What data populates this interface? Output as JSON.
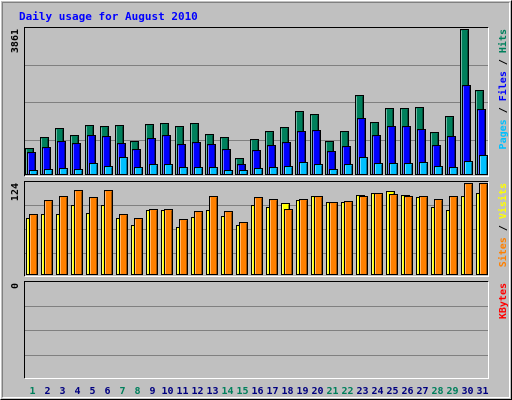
{
  "chart_data": {
    "type": "bar",
    "title": "Daily usage for August 2010",
    "categories": [
      "1",
      "2",
      "3",
      "4",
      "5",
      "6",
      "7",
      "8",
      "9",
      "10",
      "11",
      "12",
      "13",
      "14",
      "15",
      "16",
      "17",
      "18",
      "19",
      "20",
      "21",
      "22",
      "23",
      "24",
      "25",
      "26",
      "27",
      "28",
      "29",
      "30",
      "31"
    ],
    "weekend_days": [
      "1",
      "7",
      "8",
      "14",
      "15",
      "21",
      "22",
      "28",
      "29"
    ],
    "colors": {
      "hits": "#00805c",
      "files": "#0000ff",
      "pages": "#00c0ff",
      "visits": "#ffff00",
      "sites": "#ff8000",
      "kbytes": "#ff0000",
      "title": "#0000ff",
      "weekday": "#000080",
      "weekend": "#00805c",
      "plot_bg": "#c0c0c0"
    },
    "panels": [
      {
        "id": "hits-files-pages",
        "ymax_label": "3861",
        "ylim": [
          0,
          3861
        ],
        "axis_label": [
          {
            "text": "Pages",
            "color": "#00c0ff"
          },
          {
            "text": " / ",
            "color": "#000000"
          },
          {
            "text": "Files",
            "color": "#0000ff"
          },
          {
            "text": " / ",
            "color": "#000000"
          },
          {
            "text": "Hits",
            "color": "#00805c"
          }
        ],
        "series": [
          {
            "name": "Hits",
            "color": "#00805c",
            "values": [
              720,
              1010,
              1230,
              1050,
              1320,
              1300,
              1330,
              890,
              1360,
              1380,
              1300,
              1380,
              1090,
              1000,
              450,
              950,
              1160,
              1280,
              1700,
              1610,
              890,
              1160,
              2120,
              1400,
              1780,
              1780,
              1790,
              1130,
              1570,
              3861,
              2240
            ]
          },
          {
            "name": "Files",
            "color": "#0000ff",
            "values": [
              600,
              730,
              900,
              850,
              1050,
              1020,
              840,
              700,
              980,
              1050,
              820,
              860,
              830,
              700,
              300,
              650,
              800,
              880,
              1170,
              1190,
              640,
              760,
              1500,
              1070,
              1290,
              1300,
              1210,
              800,
              1030,
              2380,
              1750
            ]
          },
          {
            "name": "Pages",
            "color": "#00c0ff",
            "values": [
              120,
              170,
              180,
              170,
              320,
              240,
              480,
              200,
              300,
              300,
              200,
              200,
              200,
              140,
              120,
              180,
              200,
              250,
              340,
              300,
              150,
              290,
              470,
              320,
              330,
              330,
              340,
              230,
              220,
              380,
              520
            ]
          }
        ]
      },
      {
        "id": "visits-sites",
        "ymax_label": "124",
        "ylim": [
          0,
          124
        ],
        "axis_label": [
          {
            "text": "Sites",
            "color": "#ff8000"
          },
          {
            "text": " / ",
            "color": "#000000"
          },
          {
            "text": "Visits",
            "color": "#ffff00"
          }
        ],
        "series": [
          {
            "name": "Visits",
            "color": "#ffff00",
            "values": [
              77,
              82,
              82,
              94,
              83,
              94,
              77,
              68,
              87,
              87,
              65,
              78,
              88,
              79,
              67,
              95,
              92,
              97,
              101,
              106,
              98,
              99,
              108,
              110,
              113,
              108,
              105,
              91,
              87,
              107,
              111
            ]
          },
          {
            "name": "Sites",
            "color": "#ff8000",
            "values": [
              82,
              101,
              107,
              114,
              105,
              114,
              82,
              77,
              89,
              89,
              76,
              86,
              107,
              86,
              71,
              105,
              103,
              89,
              103,
              107,
              98,
              100,
              106,
              111,
              109,
              106,
              107,
              103,
              106,
              124,
              124
            ]
          }
        ]
      },
      {
        "id": "kbytes",
        "ymax_label": "0",
        "ylim": [
          0,
          1
        ],
        "axis_label": [
          {
            "text": "KBytes",
            "color": "#ff0000"
          }
        ],
        "series": [
          {
            "name": "KBytes",
            "color": "#ff0000",
            "values": [
              0,
              0,
              0,
              0,
              0,
              0,
              0,
              0,
              0,
              0,
              0,
              0,
              0,
              0,
              0,
              0,
              0,
              0,
              0,
              0,
              0,
              0,
              0,
              0,
              0,
              0,
              0,
              0,
              0,
              0,
              0
            ]
          }
        ]
      }
    ]
  }
}
